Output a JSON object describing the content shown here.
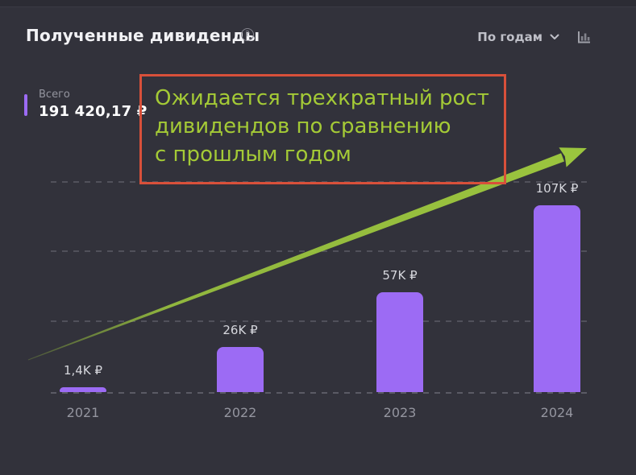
{
  "header": {
    "title": "Полученные дивиденды",
    "help_glyph": "?",
    "period_label": "По годам"
  },
  "total": {
    "label": "Всего",
    "value": "191 420,17 ₽"
  },
  "annotation": {
    "lines": [
      "Ожидается трехкратный рост",
      "дивидендов по сравнению",
      "с прошлым годом"
    ]
  },
  "chart_data": {
    "type": "bar",
    "title": "Полученные дивиденды",
    "categories": [
      "2021",
      "2022",
      "2023",
      "2024"
    ],
    "values": [
      1400,
      26000,
      57000,
      107000
    ],
    "value_labels": [
      "1,4K ₽",
      "26K ₽",
      "57K ₽",
      "107K ₽"
    ],
    "currency": "RUB",
    "xlabel": "",
    "ylabel": "",
    "ylim": [
      0,
      120000
    ],
    "grid": "horizontal-dashed",
    "legend": "none",
    "annotation_arrow": "green upward trend arrow from 2021 to 2024"
  },
  "colors": {
    "background": "#32323b",
    "bar": "#9c6bf4",
    "total_accent": "#9c6bf4",
    "annotation_border": "#d8503a",
    "annotation_text": "#a4ca36",
    "arrow": "#9bc53e",
    "gridline": "#51515b",
    "text_primary": "#f2f2f5",
    "text_secondary": "#94959f"
  }
}
